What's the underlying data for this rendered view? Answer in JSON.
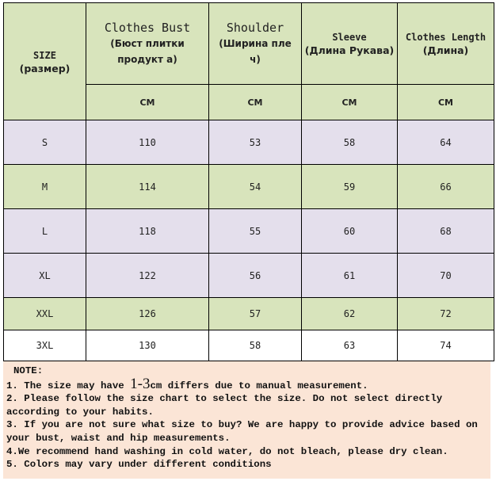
{
  "header": {
    "size": {
      "en": "SIZE",
      "ru": "(размер)"
    },
    "columns": [
      {
        "en": "Clothes Bust",
        "ru": "(Бюст плитки продукт а)",
        "unit": "CM"
      },
      {
        "en": "Shoulder",
        "ru": "(Ширина пле ч)",
        "unit": "CM"
      },
      {
        "en": "Sleeve",
        "ru": "(Длина Рукава)",
        "unit": "CM"
      },
      {
        "en": "Clothes Length",
        "ru": "(Длина)",
        "unit": "CM"
      }
    ]
  },
  "rows": [
    {
      "size": "S",
      "values": [
        "110",
        "53",
        "58",
        "64"
      ],
      "color": "#e4dfec"
    },
    {
      "size": "M",
      "values": [
        "114",
        "54",
        "59",
        "66"
      ],
      "color": "#d8e4bc"
    },
    {
      "size": "L",
      "values": [
        "118",
        "55",
        "60",
        "68"
      ],
      "color": "#e4dfec"
    },
    {
      "size": "XL",
      "values": [
        "122",
        "56",
        "61",
        "70"
      ],
      "color": "#e4dfec"
    },
    {
      "size": "XXL",
      "values": [
        "126",
        "57",
        "62",
        "72"
      ],
      "color": "#d8e4bc"
    },
    {
      "size": "3XL",
      "values": [
        "130",
        "58",
        "63",
        "74"
      ],
      "color": "#ffffff"
    }
  ],
  "note": {
    "title": "NOTE:",
    "line1_pre": "1. The size may have ",
    "line1_big": "1-3",
    "line1_post": "cm differs due to manual measurement.",
    "line2": "2. Please follow the size chart to select the size. Do not select directly according to your habits.",
    "line3": "3. If you are not sure what size to buy? We are happy to provide advice based on your bust, waist and hip measurements.",
    "line4": "4.We recommend hand washing in cold water, do not bleach, please dry clean.",
    "line5": "5. Colors may vary under different conditions"
  }
}
